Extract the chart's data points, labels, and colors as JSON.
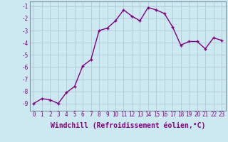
{
  "x": [
    0,
    1,
    2,
    3,
    4,
    5,
    6,
    7,
    8,
    9,
    10,
    11,
    12,
    13,
    14,
    15,
    16,
    17,
    18,
    19,
    20,
    21,
    22,
    23
  ],
  "y": [
    -9.0,
    -8.6,
    -8.7,
    -9.0,
    -8.1,
    -7.6,
    -5.9,
    -5.4,
    -3.0,
    -2.8,
    -2.2,
    -1.3,
    -1.8,
    -2.2,
    -1.1,
    -1.3,
    -1.6,
    -2.7,
    -4.2,
    -3.9,
    -3.9,
    -4.5,
    -3.6,
    -3.8
  ],
  "line_color": "#800080",
  "marker": "+",
  "bg_color": "#cce8f0",
  "grid_color": "#b0c8d4",
  "spine_color": "#8090a0",
  "xlabel": "Windchill (Refroidissement éolien,°C)",
  "ylim": [
    -9.6,
    -0.6
  ],
  "xlim": [
    -0.5,
    23.5
  ],
  "yticks": [
    -9,
    -8,
    -7,
    -6,
    -5,
    -4,
    -3,
    -2,
    -1
  ],
  "xticks": [
    0,
    1,
    2,
    3,
    4,
    5,
    6,
    7,
    8,
    9,
    10,
    11,
    12,
    13,
    14,
    15,
    16,
    17,
    18,
    19,
    20,
    21,
    22,
    23
  ],
  "tick_fontsize": 5.5,
  "xlabel_fontsize": 7.0,
  "line_width": 1.0,
  "marker_size": 3.5,
  "marker_edge_width": 1.0
}
